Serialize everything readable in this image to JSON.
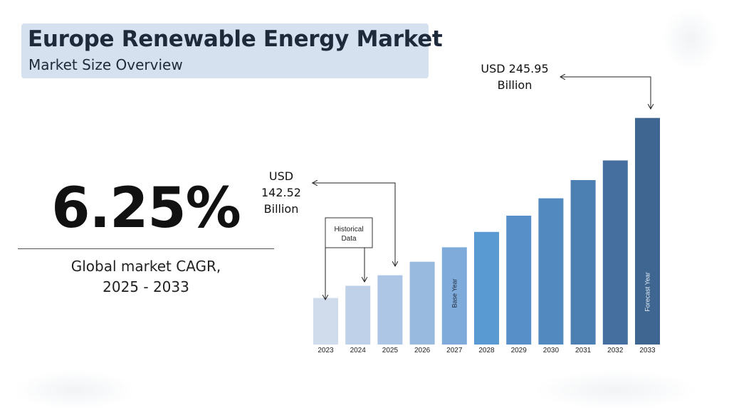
{
  "header": {
    "title": "Europe Renewable Energy Market",
    "subtitle": "Market Size Overview"
  },
  "cagr": {
    "value": "6.25%",
    "label_line1": "Global market CAGR,",
    "label_line2": "2025 - 2033"
  },
  "chart_data": {
    "type": "bar",
    "title": "Europe Renewable Energy Market",
    "categories": [
      "2023",
      "2024",
      "2025",
      "2026",
      "2027",
      "2028",
      "2029",
      "2030",
      "2031",
      "2032",
      "2033"
    ],
    "values": [
      127.6,
      135.6,
      142.52,
      151.4,
      160.9,
      171.0,
      181.7,
      193.1,
      205.1,
      218.0,
      245.95
    ],
    "ylim": [
      97,
      250
    ],
    "colors": [
      "#d0dcec",
      "#bfd1e9",
      "#aec6e5",
      "#98badf",
      "#7fabdb",
      "#5a9ad3",
      "#5790c8",
      "#5289bf",
      "#4c7fb2",
      "#456f9e",
      "#3e6690"
    ],
    "bar_labels": {
      "2027": "Base Year",
      "2033": "Forecast Year"
    },
    "historical_box": {
      "line1": "Historical",
      "line2": "Data"
    },
    "annotations": {
      "start": {
        "line1": "USD",
        "line2": "142.52",
        "line3": "Billion"
      },
      "end": {
        "line1": "USD 245.95",
        "line2": "Billion"
      }
    }
  }
}
